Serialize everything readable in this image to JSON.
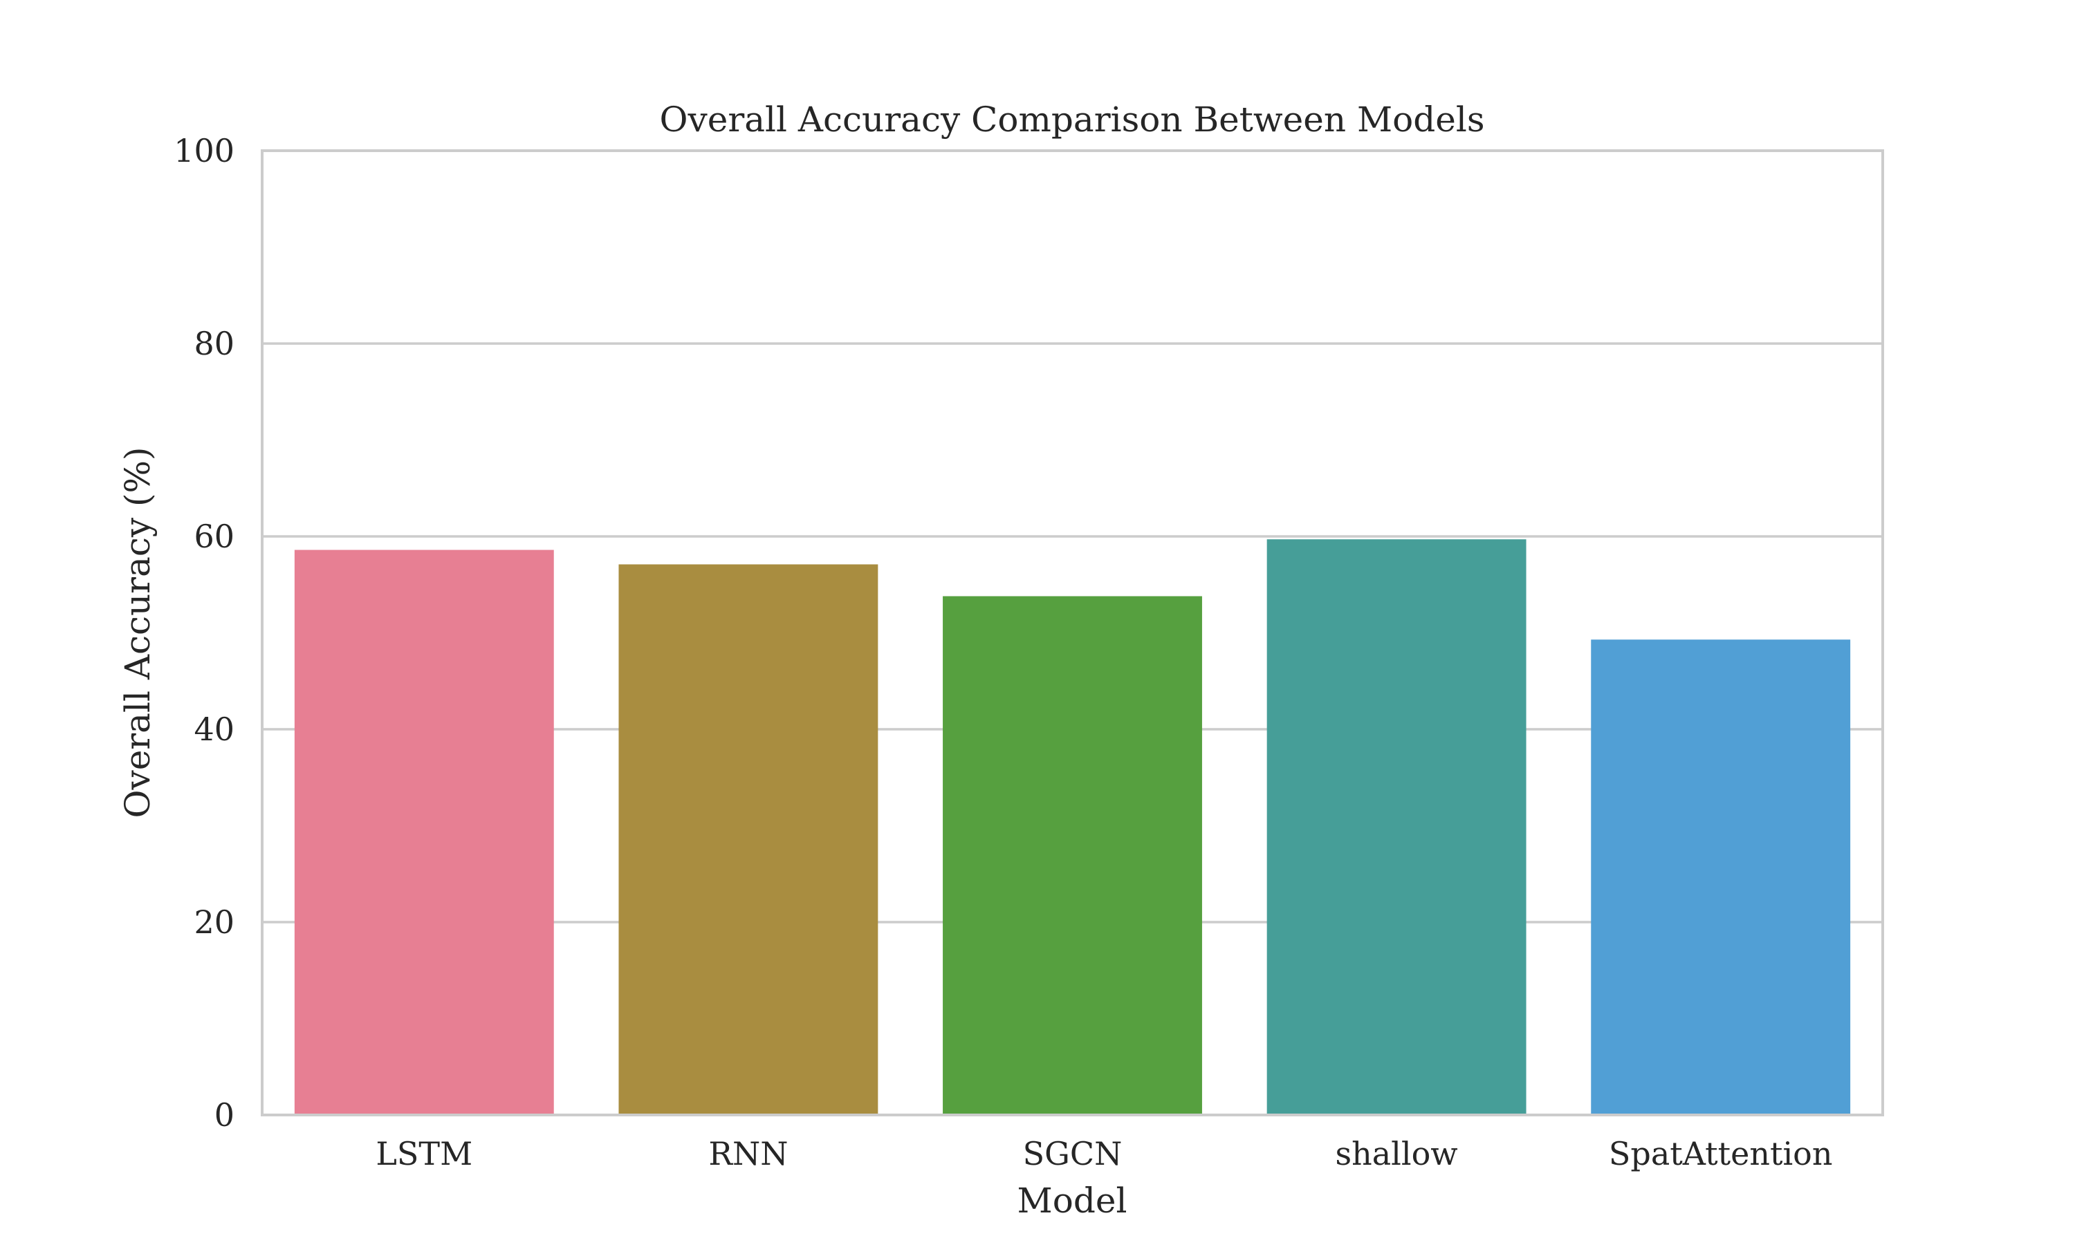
{
  "chart_data": {
    "type": "bar",
    "title": "Overall Accuracy Comparison Between Models",
    "xlabel": "Model",
    "ylabel": "Overall Accuracy (%)",
    "categories": [
      "LSTM",
      "RNN",
      "SGCN",
      "shallow",
      "SpatAttention"
    ],
    "values": [
      58.6,
      57.1,
      53.8,
      59.7,
      49.3
    ],
    "ylim": [
      0,
      100
    ],
    "yticks": [
      "0",
      "20",
      "40",
      "60",
      "80",
      "100"
    ],
    "grid": true,
    "legend": "none",
    "colors": [
      "#e77f93",
      "#a98d40",
      "#56a03f",
      "#469e98",
      "#519fd5"
    ],
    "grid_color": "#cccccc",
    "frame_color": "#cccccc"
  }
}
